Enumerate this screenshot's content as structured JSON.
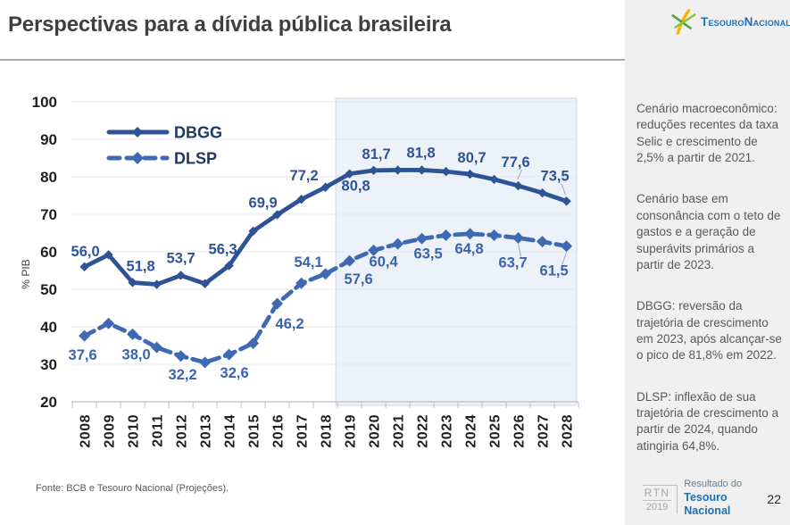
{
  "slide": {
    "title": "Perspectivas para a dívida pública brasileira",
    "source_note": "Fonte: BCB e Tesouro Nacional (Projeções).",
    "page_number": "22"
  },
  "logo": {
    "text": "TesouroNacional"
  },
  "footer_brand": {
    "rtn": "RTN",
    "year": "2019",
    "line1": "Resultado do",
    "line2": "Tesouro Nacional"
  },
  "sidebar": {
    "paragraphs": [
      "Cenário macroeconômico: reduções recentes da taxa Selic e crescimento de 2,5% a partir de 2021.",
      "Cenário base em consonância com o teto de gastos e a geração de superávits primários a partir de 2023.",
      "DBGG: reversão da trajetória de crescimento em 2023, após alcançar-se o pico de 81,8% em 2022.",
      "DLSP: inflexão de sua trajetória de crescimento a partir de 2024, quando atingiria 64,8%."
    ]
  },
  "chart_data": {
    "type": "line",
    "title": "",
    "ylabel": "% PIB",
    "ylim": [
      20,
      100
    ],
    "ytick_step": 10,
    "grid": true,
    "legend_position": "top-left",
    "projection_start": 2019,
    "x": [
      2008,
      2009,
      2010,
      2011,
      2012,
      2013,
      2014,
      2015,
      2016,
      2017,
      2018,
      2019,
      2020,
      2021,
      2022,
      2023,
      2024,
      2025,
      2026,
      2027,
      2028
    ],
    "series": [
      {
        "name": "DBGG",
        "style": "solid",
        "color": "#2e5395",
        "label_color": "#2e5395",
        "values": [
          56.0,
          59.2,
          51.8,
          51.3,
          53.7,
          51.5,
          56.3,
          65.5,
          69.9,
          74.0,
          77.2,
          80.8,
          81.7,
          81.8,
          81.8,
          81.4,
          80.7,
          79.3,
          77.6,
          75.7,
          73.5
        ],
        "labels": [
          {
            "x": 2008,
            "text": "56,0",
            "dx": 1,
            "dy": -12
          },
          {
            "x": 2010,
            "text": "51,8",
            "dx": 9,
            "dy": -13
          },
          {
            "x": 2012,
            "text": "53,7",
            "dx": 0,
            "dy": -14
          },
          {
            "x": 2014,
            "text": "56,3",
            "dx": -7,
            "dy": -13
          },
          {
            "x": 2016,
            "text": "69,9",
            "dx": -16,
            "dy": -8
          },
          {
            "x": 2018,
            "text": "77,2",
            "dx": -24,
            "dy": -8
          },
          {
            "x": 2019,
            "text": "80,8",
            "dx": 7,
            "dy": 19
          },
          {
            "x": 2020,
            "text": "81,7",
            "dx": 3,
            "dy": -13
          },
          {
            "x": 2022,
            "text": "81,8",
            "dx": -1,
            "dy": -14
          },
          {
            "x": 2024,
            "text": "80,7",
            "dx": 2,
            "dy": -13
          },
          {
            "x": 2026,
            "text": "77,6",
            "dx": -3,
            "dy": -21,
            "leader": true
          },
          {
            "x": 2028,
            "text": "73,5",
            "dx": -13,
            "dy": -23,
            "leader": true
          }
        ]
      },
      {
        "name": "DLSP",
        "style": "dashed",
        "color": "#3f69b2",
        "label_color": "#3a64ae",
        "values": [
          37.6,
          40.9,
          38.0,
          34.5,
          32.2,
          30.5,
          32.6,
          35.6,
          46.2,
          51.6,
          54.1,
          57.6,
          60.4,
          62.1,
          63.5,
          64.4,
          64.8,
          64.4,
          63.7,
          62.7,
          61.5
        ],
        "labels": [
          {
            "x": 2008,
            "text": "37,6",
            "dx": -2,
            "dy": 27
          },
          {
            "x": 2010,
            "text": "38,0",
            "dx": 4,
            "dy": 28
          },
          {
            "x": 2012,
            "text": "32,2",
            "dx": 2,
            "dy": 26
          },
          {
            "x": 2014,
            "text": "32,6",
            "dx": 6,
            "dy": 26
          },
          {
            "x": 2016,
            "text": "46,2",
            "dx": 14,
            "dy": 28
          },
          {
            "x": 2018,
            "text": "54,1",
            "dx": -19,
            "dy": -8
          },
          {
            "x": 2019,
            "text": "57,6",
            "dx": 10,
            "dy": 26
          },
          {
            "x": 2020,
            "text": "60,4",
            "dx": 11,
            "dy": 18
          },
          {
            "x": 2022,
            "text": "63,5",
            "dx": 7,
            "dy": 22
          },
          {
            "x": 2024,
            "text": "64,8",
            "dx": -1,
            "dy": 22
          },
          {
            "x": 2026,
            "text": "63,7",
            "dx": -6,
            "dy": 33,
            "leader": true
          },
          {
            "x": 2028,
            "text": "61,5",
            "dx": -14,
            "dy": 33,
            "leader": true
          }
        ]
      }
    ]
  }
}
